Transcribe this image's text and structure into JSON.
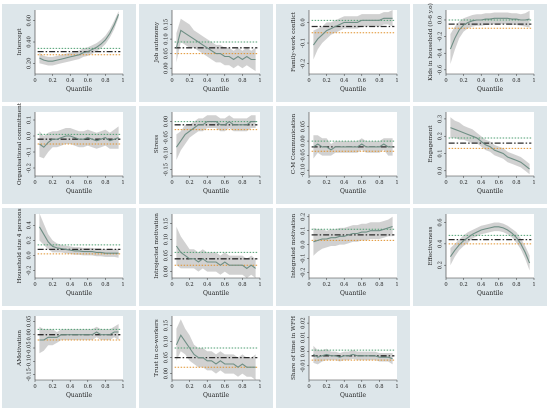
{
  "colors": {
    "background": "#dde6ea",
    "plot_area": "#ffffff",
    "band": "#c9c9c9",
    "qr_line": "#6e8e84",
    "ols_line": "#2b2b2b",
    "ci_upper": "#4d9e70",
    "ci_lower": "#e0922f",
    "axis": "#333333"
  },
  "chart_data": [
    {
      "type": "line",
      "title": "",
      "xlabel": "Quantile",
      "ylabel": "Intercept",
      "xticks": [
        "0",
        "0.2",
        "0.4",
        "0.6",
        "0.8",
        "1"
      ],
      "yticks": [
        0.2,
        0.4,
        0.6
      ],
      "ylim": [
        0.1,
        0.7
      ],
      "x": [
        0.05,
        0.1,
        0.15,
        0.2,
        0.25,
        0.3,
        0.35,
        0.4,
        0.45,
        0.5,
        0.55,
        0.6,
        0.65,
        0.7,
        0.75,
        0.8,
        0.85,
        0.9,
        0.95
      ],
      "qr": [
        0.25,
        0.23,
        0.22,
        0.22,
        0.23,
        0.24,
        0.25,
        0.26,
        0.27,
        0.28,
        0.3,
        0.31,
        0.33,
        0.35,
        0.38,
        0.42,
        0.48,
        0.56,
        0.66
      ],
      "band_half": [
        0.05,
        0.04,
        0.04,
        0.04,
        0.04,
        0.04,
        0.04,
        0.04,
        0.04,
        0.04,
        0.04,
        0.04,
        0.04,
        0.04,
        0.04,
        0.04,
        0.04,
        0.04,
        0.03
      ],
      "ols": 0.31,
      "ci_upper": 0.34,
      "ci_lower": 0.28
    },
    {
      "type": "line",
      "title": "",
      "xlabel": "Quantile",
      "ylabel": "Job autonomy",
      "xticks": [
        "0",
        "0.2",
        "0.4",
        "0.6",
        "0.8",
        "1"
      ],
      "yticks": [
        0.0,
        0.05,
        0.1,
        0.15
      ],
      "ylim": [
        -0.02,
        0.2
      ],
      "x": [
        0.05,
        0.1,
        0.15,
        0.2,
        0.25,
        0.3,
        0.35,
        0.4,
        0.45,
        0.5,
        0.55,
        0.6,
        0.65,
        0.7,
        0.75,
        0.8,
        0.85,
        0.9,
        0.95
      ],
      "qr": [
        0.07,
        0.13,
        0.12,
        0.11,
        0.1,
        0.09,
        0.08,
        0.07,
        0.06,
        0.05,
        0.05,
        0.04,
        0.04,
        0.03,
        0.04,
        0.03,
        0.04,
        0.03,
        0.03
      ],
      "band_half": [
        0.05,
        0.04,
        0.04,
        0.04,
        0.03,
        0.03,
        0.03,
        0.03,
        0.03,
        0.03,
        0.03,
        0.03,
        0.03,
        0.03,
        0.03,
        0.03,
        0.03,
        0.03,
        0.04
      ],
      "ols": 0.07,
      "ci_upper": 0.09,
      "ci_lower": 0.05
    },
    {
      "type": "line",
      "title": "",
      "xlabel": "Quantile",
      "ylabel": "Family-work conflict",
      "xticks": [
        "0",
        "0.2",
        "0.4",
        "0.6",
        "0.8",
        "1"
      ],
      "yticks": [
        -0.2,
        -0.1,
        0.0
      ],
      "ylim": [
        -0.25,
        0.06
      ],
      "x": [
        0.05,
        0.1,
        0.15,
        0.2,
        0.25,
        0.3,
        0.35,
        0.4,
        0.45,
        0.5,
        0.55,
        0.6,
        0.65,
        0.7,
        0.75,
        0.8,
        0.85,
        0.9,
        0.95
      ],
      "qr": [
        -0.11,
        -0.08,
        -0.06,
        -0.04,
        -0.03,
        -0.02,
        -0.01,
        0.0,
        0.0,
        0.0,
        0.0,
        0.01,
        0.01,
        0.01,
        0.01,
        0.01,
        0.02,
        0.02,
        0.02
      ],
      "band_half": [
        0.07,
        0.05,
        0.04,
        0.04,
        0.03,
        0.03,
        0.03,
        0.03,
        0.03,
        0.03,
        0.03,
        0.03,
        0.03,
        0.03,
        0.03,
        0.03,
        0.03,
        0.03,
        0.04
      ],
      "ols": -0.02,
      "ci_upper": 0.01,
      "ci_lower": -0.05
    },
    {
      "type": "line",
      "title": "",
      "xlabel": "Quantile",
      "ylabel": "Kids in household (0-6 y.o)",
      "xticks": [
        "0",
        "0.2",
        "0.4",
        "0.6",
        "0.8",
        "1"
      ],
      "yticks": [
        -0.6,
        -0.4,
        -0.2,
        0.0
      ],
      "ylim": [
        -0.65,
        0.12
      ],
      "x": [
        0.05,
        0.1,
        0.15,
        0.2,
        0.25,
        0.3,
        0.35,
        0.4,
        0.45,
        0.5,
        0.55,
        0.6,
        0.65,
        0.7,
        0.75,
        0.8,
        0.85,
        0.9,
        0.95
      ],
      "qr": [
        -0.35,
        -0.22,
        -0.12,
        -0.06,
        -0.03,
        -0.01,
        0.0,
        0.0,
        0.01,
        0.01,
        0.02,
        0.02,
        0.02,
        0.02,
        0.01,
        0.01,
        0.0,
        0.0,
        0.01
      ],
      "band_half": [
        0.18,
        0.14,
        0.1,
        0.08,
        0.07,
        0.07,
        0.07,
        0.07,
        0.07,
        0.07,
        0.07,
        0.07,
        0.07,
        0.07,
        0.07,
        0.07,
        0.07,
        0.08,
        0.1
      ],
      "ols": -0.05,
      "ci_upper": 0.0,
      "ci_lower": -0.1
    },
    {
      "type": "line",
      "title": "",
      "xlabel": "Quantile",
      "ylabel": "Organisational commitment",
      "xticks": [
        "0",
        "0.2",
        "0.4",
        "0.6",
        "0.8",
        "1"
      ],
      "yticks": [
        -0.2,
        -0.1,
        0.0,
        0.1
      ],
      "ylim": [
        -0.25,
        0.15
      ],
      "x": [
        0.05,
        0.1,
        0.15,
        0.2,
        0.25,
        0.3,
        0.35,
        0.4,
        0.45,
        0.5,
        0.55,
        0.6,
        0.65,
        0.7,
        0.75,
        0.8,
        0.85,
        0.9,
        0.95
      ],
      "qr": [
        -0.05,
        -0.07,
        -0.04,
        -0.02,
        -0.02,
        -0.01,
        0.0,
        0.0,
        -0.01,
        -0.02,
        -0.02,
        -0.01,
        -0.02,
        -0.03,
        -0.02,
        -0.01,
        -0.03,
        -0.02,
        -0.01
      ],
      "band_half": [
        0.08,
        0.07,
        0.06,
        0.05,
        0.05,
        0.05,
        0.05,
        0.05,
        0.05,
        0.05,
        0.05,
        0.05,
        0.05,
        0.05,
        0.05,
        0.05,
        0.05,
        0.06,
        0.07
      ],
      "ols": -0.02,
      "ci_upper": 0.01,
      "ci_lower": -0.05
    },
    {
      "type": "line",
      "title": "",
      "xlabel": "Quantile",
      "ylabel": "Stress",
      "xticks": [
        "0",
        "0.2",
        "0.4",
        "0.6",
        "0.8",
        "1"
      ],
      "yticks": [
        -0.15,
        -0.1,
        -0.05,
        0.0
      ],
      "ylim": [
        -0.17,
        0.03
      ],
      "x": [
        0.05,
        0.1,
        0.15,
        0.2,
        0.25,
        0.3,
        0.35,
        0.4,
        0.45,
        0.5,
        0.55,
        0.6,
        0.65,
        0.7,
        0.75,
        0.8,
        0.85,
        0.9,
        0.95
      ],
      "qr": [
        -0.08,
        -0.06,
        -0.04,
        -0.03,
        -0.02,
        -0.01,
        -0.01,
        0.0,
        0.0,
        0.0,
        -0.01,
        -0.01,
        0.0,
        -0.01,
        -0.01,
        -0.01,
        -0.01,
        0.0,
        0.0
      ],
      "band_half": [
        0.04,
        0.03,
        0.03,
        0.02,
        0.02,
        0.02,
        0.02,
        0.02,
        0.02,
        0.02,
        0.02,
        0.02,
        0.02,
        0.02,
        0.02,
        0.02,
        0.02,
        0.02,
        0.02
      ],
      "ols": -0.01,
      "ci_upper": 0.0,
      "ci_lower": -0.025
    },
    {
      "type": "line",
      "title": "",
      "xlabel": "Quantile",
      "ylabel": "C-M Communication",
      "xticks": [
        "0",
        "0.2",
        "0.4",
        "0.6",
        "0.8",
        "1"
      ],
      "yticks": [
        -0.1,
        -0.05,
        0.0,
        0.05
      ],
      "ylim": [
        -0.12,
        0.1
      ],
      "x": [
        0.05,
        0.1,
        0.15,
        0.2,
        0.25,
        0.3,
        0.35,
        0.4,
        0.45,
        0.5,
        0.55,
        0.6,
        0.65,
        0.7,
        0.75,
        0.8,
        0.85,
        0.9,
        0.95
      ],
      "qr": [
        -0.02,
        -0.01,
        -0.02,
        -0.02,
        -0.03,
        -0.02,
        -0.02,
        -0.02,
        -0.02,
        -0.02,
        -0.02,
        -0.01,
        -0.02,
        -0.02,
        -0.02,
        -0.02,
        -0.01,
        -0.02,
        -0.02
      ],
      "band_half": [
        0.04,
        0.03,
        0.03,
        0.03,
        0.02,
        0.02,
        0.02,
        0.02,
        0.02,
        0.02,
        0.02,
        0.02,
        0.02,
        0.02,
        0.02,
        0.02,
        0.02,
        0.03,
        0.03
      ],
      "ols": -0.02,
      "ci_upper": 0.0,
      "ci_lower": -0.035
    },
    {
      "type": "line",
      "title": "",
      "xlabel": "Quantile",
      "ylabel": "Engagement",
      "xticks": [
        "0",
        "0.2",
        "0.4",
        "0.6",
        "0.8",
        "1"
      ],
      "yticks": [
        0.0,
        0.1,
        0.2,
        0.3
      ],
      "ylim": [
        -0.03,
        0.34
      ],
      "x": [
        0.05,
        0.1,
        0.15,
        0.2,
        0.25,
        0.3,
        0.35,
        0.4,
        0.45,
        0.5,
        0.55,
        0.6,
        0.65,
        0.7,
        0.75,
        0.8,
        0.85,
        0.9,
        0.95
      ],
      "qr": [
        0.25,
        0.24,
        0.23,
        0.22,
        0.21,
        0.2,
        0.19,
        0.17,
        0.15,
        0.14,
        0.12,
        0.11,
        0.1,
        0.08,
        0.07,
        0.06,
        0.05,
        0.03,
        0.01
      ],
      "band_half": [
        0.06,
        0.05,
        0.05,
        0.04,
        0.04,
        0.04,
        0.03,
        0.03,
        0.03,
        0.03,
        0.03,
        0.03,
        0.03,
        0.03,
        0.03,
        0.03,
        0.03,
        0.03,
        0.03
      ],
      "ols": 0.16,
      "ci_upper": 0.19,
      "ci_lower": 0.13
    },
    {
      "type": "line",
      "title": "",
      "xlabel": "Quantile",
      "ylabel": "Household size 4 persons",
      "xticks": [
        "0",
        "0.2",
        "0.4",
        "0.6",
        "0.8",
        "1"
      ],
      "yticks": [
        -0.2,
        0.0,
        0.2,
        0.4
      ],
      "ylim": [
        -0.3,
        0.55
      ],
      "x": [
        0.05,
        0.1,
        0.15,
        0.2,
        0.25,
        0.3,
        0.35,
        0.4,
        0.45,
        0.5,
        0.55,
        0.6,
        0.65,
        0.7,
        0.75,
        0.8,
        0.85,
        0.9,
        0.95
      ],
      "qr": [
        0.38,
        0.28,
        0.18,
        0.12,
        0.1,
        0.09,
        0.08,
        0.07,
        0.06,
        0.06,
        0.05,
        0.05,
        0.05,
        0.04,
        0.04,
        0.03,
        0.03,
        0.03,
        0.03
      ],
      "band_half": [
        0.18,
        0.14,
        0.1,
        0.08,
        0.06,
        0.05,
        0.05,
        0.05,
        0.05,
        0.05,
        0.05,
        0.05,
        0.05,
        0.05,
        0.05,
        0.05,
        0.05,
        0.05,
        0.06
      ],
      "ols": 0.08,
      "ci_upper": 0.14,
      "ci_lower": 0.02
    },
    {
      "type": "line",
      "title": "",
      "xlabel": "Quantile",
      "ylabel": "Introjected motivation",
      "xticks": [
        "0",
        "0.2",
        "0.4",
        "0.6",
        "0.8",
        "1"
      ],
      "yticks": [
        0.0,
        0.05,
        0.1,
        0.15
      ],
      "ylim": [
        -0.02,
        0.18
      ],
      "x": [
        0.05,
        0.1,
        0.15,
        0.2,
        0.25,
        0.3,
        0.35,
        0.4,
        0.45,
        0.5,
        0.55,
        0.6,
        0.65,
        0.7,
        0.75,
        0.8,
        0.85,
        0.9,
        0.95
      ],
      "qr": [
        0.08,
        0.06,
        0.05,
        0.04,
        0.04,
        0.03,
        0.04,
        0.03,
        0.03,
        0.03,
        0.02,
        0.03,
        0.02,
        0.02,
        0.02,
        0.02,
        0.01,
        0.02,
        0.01
      ],
      "band_half": [
        0.06,
        0.05,
        0.04,
        0.03,
        0.03,
        0.03,
        0.03,
        0.03,
        0.03,
        0.03,
        0.03,
        0.03,
        0.03,
        0.03,
        0.03,
        0.03,
        0.03,
        0.03,
        0.03
      ],
      "ols": 0.04,
      "ci_upper": 0.06,
      "ci_lower": 0.02
    },
    {
      "type": "line",
      "title": "",
      "xlabel": "Quantile",
      "ylabel": "Integrated motivation",
      "xticks": [
        "0",
        "0.2",
        "0.4",
        "0.6",
        "0.8",
        "1"
      ],
      "yticks": [
        -0.2,
        -0.1,
        0.0,
        0.1,
        0.2
      ],
      "ylim": [
        -0.24,
        0.22
      ],
      "x": [
        0.05,
        0.1,
        0.15,
        0.2,
        0.25,
        0.3,
        0.35,
        0.4,
        0.45,
        0.5,
        0.55,
        0.6,
        0.65,
        0.7,
        0.75,
        0.8,
        0.85,
        0.9,
        0.95
      ],
      "qr": [
        0.02,
        0.03,
        0.04,
        0.04,
        0.05,
        0.05,
        0.06,
        0.06,
        0.07,
        0.08,
        0.08,
        0.09,
        0.09,
        0.1,
        0.1,
        0.1,
        0.11,
        0.12,
        0.13
      ],
      "band_half": [
        0.1,
        0.08,
        0.07,
        0.06,
        0.06,
        0.06,
        0.06,
        0.06,
        0.06,
        0.06,
        0.06,
        0.06,
        0.06,
        0.06,
        0.06,
        0.06,
        0.06,
        0.06,
        0.07
      ],
      "ols": 0.07,
      "ci_upper": 0.11,
      "ci_lower": 0.03
    },
    {
      "type": "line",
      "title": "",
      "xlabel": "Quantile",
      "ylabel": "Effectiveness",
      "xticks": [
        "0",
        "0.2",
        "0.4",
        "0.6",
        "0.8",
        "1"
      ],
      "yticks": [
        0.2,
        0.4,
        0.6
      ],
      "ylim": [
        0.08,
        0.68
      ],
      "x": [
        0.05,
        0.1,
        0.15,
        0.2,
        0.25,
        0.3,
        0.35,
        0.4,
        0.45,
        0.5,
        0.55,
        0.6,
        0.65,
        0.7,
        0.75,
        0.8,
        0.85,
        0.9,
        0.95
      ],
      "qr": [
        0.28,
        0.34,
        0.39,
        0.43,
        0.46,
        0.49,
        0.51,
        0.53,
        0.54,
        0.55,
        0.56,
        0.56,
        0.55,
        0.53,
        0.5,
        0.46,
        0.4,
        0.32,
        0.22
      ],
      "band_half": [
        0.08,
        0.06,
        0.05,
        0.05,
        0.05,
        0.04,
        0.04,
        0.04,
        0.04,
        0.04,
        0.04,
        0.04,
        0.04,
        0.04,
        0.04,
        0.05,
        0.05,
        0.06,
        0.07
      ],
      "ols": 0.44,
      "ci_upper": 0.48,
      "ci_lower": 0.4
    },
    {
      "type": "line",
      "title": "",
      "xlabel": "Quantile",
      "ylabel": "AMotivation",
      "xticks": [
        "0",
        "0.2",
        "0.4",
        "0.6",
        "0.8",
        "1"
      ],
      "yticks": [
        -0.15,
        -0.1,
        -0.05,
        0.0,
        0.05
      ],
      "ylim": [
        -0.17,
        0.07
      ],
      "x": [
        0.05,
        0.1,
        0.15,
        0.2,
        0.25,
        0.3,
        0.35,
        0.4,
        0.45,
        0.5,
        0.55,
        0.6,
        0.65,
        0.7,
        0.75,
        0.8,
        0.85,
        0.9,
        0.95
      ],
      "qr": [
        -0.02,
        -0.02,
        -0.01,
        -0.01,
        -0.01,
        0.0,
        0.0,
        0.0,
        0.0,
        0.0,
        0.0,
        0.0,
        0.0,
        0.01,
        0.0,
        0.0,
        0.0,
        0.01,
        0.01
      ],
      "band_half": [
        0.05,
        0.04,
        0.03,
        0.03,
        0.02,
        0.02,
        0.02,
        0.02,
        0.02,
        0.02,
        0.02,
        0.02,
        0.02,
        0.02,
        0.02,
        0.02,
        0.02,
        0.02,
        0.03
      ],
      "ols": 0.0,
      "ci_upper": 0.02,
      "ci_lower": -0.02
    },
    {
      "type": "line",
      "title": "",
      "xlabel": "Quantile",
      "ylabel": "Trust in co-workers",
      "xticks": [
        "0",
        "0.2",
        "0.4",
        "0.6",
        "0.8",
        "1"
      ],
      "yticks": [
        0.0,
        0.05,
        0.1,
        0.15
      ],
      "ylim": [
        -0.02,
        0.18
      ],
      "x": [
        0.05,
        0.1,
        0.15,
        0.2,
        0.25,
        0.3,
        0.35,
        0.4,
        0.45,
        0.5,
        0.55,
        0.6,
        0.65,
        0.7,
        0.75,
        0.8,
        0.85,
        0.9,
        0.95
      ],
      "qr": [
        0.09,
        0.12,
        0.1,
        0.08,
        0.06,
        0.05,
        0.05,
        0.04,
        0.04,
        0.03,
        0.04,
        0.03,
        0.03,
        0.03,
        0.02,
        0.03,
        0.02,
        0.02,
        0.02
      ],
      "band_half": [
        0.05,
        0.05,
        0.04,
        0.04,
        0.03,
        0.03,
        0.03,
        0.03,
        0.03,
        0.03,
        0.03,
        0.03,
        0.03,
        0.03,
        0.03,
        0.03,
        0.03,
        0.03,
        0.04
      ],
      "ols": 0.05,
      "ci_upper": 0.08,
      "ci_lower": 0.02
    },
    {
      "type": "line",
      "title": "",
      "xlabel": "Quantile",
      "ylabel": "Share of time in WFH",
      "xticks": [
        "0",
        "0.2",
        "0.4",
        "0.6",
        "0.8",
        "1"
      ],
      "yticks": [
        -0.01,
        0.0,
        0.01,
        0.02
      ],
      "ylim": [
        -0.02,
        0.025
      ],
      "x": [
        0.05,
        0.1,
        0.15,
        0.2,
        0.25,
        0.3,
        0.35,
        0.4,
        0.45,
        0.5,
        0.55,
        0.6,
        0.65,
        0.7,
        0.75,
        0.8,
        0.85,
        0.9,
        0.95
      ],
      "qr": [
        -0.002,
        -0.004,
        -0.003,
        -0.002,
        -0.003,
        -0.003,
        -0.004,
        -0.003,
        -0.003,
        -0.002,
        -0.003,
        -0.003,
        -0.003,
        -0.003,
        -0.003,
        -0.004,
        -0.004,
        -0.004,
        -0.005
      ],
      "band_half": [
        0.006,
        0.005,
        0.004,
        0.004,
        0.003,
        0.003,
        0.003,
        0.003,
        0.003,
        0.003,
        0.003,
        0.003,
        0.003,
        0.003,
        0.003,
        0.003,
        0.003,
        0.003,
        0.004
      ],
      "ols": -0.003,
      "ci_upper": 0.001,
      "ci_lower": -0.006
    }
  ]
}
